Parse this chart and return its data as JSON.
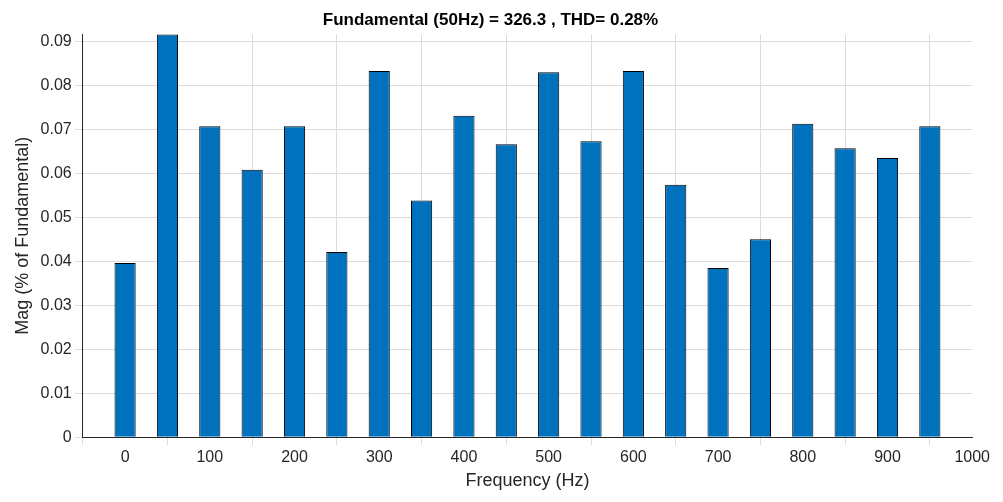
{
  "chart_data": {
    "type": "bar",
    "title": "Fundamental (50Hz) = 326.3 , THD= 0.28%",
    "xlabel": "Frequency (Hz)",
    "ylabel": "Mag (% of Fundamental)",
    "x": [
      0,
      50,
      100,
      150,
      200,
      250,
      300,
      350,
      400,
      450,
      500,
      550,
      600,
      650,
      700,
      750,
      800,
      850,
      900,
      950
    ],
    "values": [
      0.0396,
      0.0916,
      0.0707,
      0.0608,
      0.0707,
      0.0421,
      0.0833,
      0.0538,
      0.0731,
      0.0666,
      0.083,
      0.0673,
      0.0833,
      0.0574,
      0.0385,
      0.045,
      0.0713,
      0.0657,
      0.0635,
      0.0707
    ],
    "color": "#0072bd",
    "xlim": [
      -50,
      1000
    ],
    "xticks": [
      0,
      100,
      200,
      300,
      400,
      500,
      600,
      700,
      800,
      900,
      1000
    ],
    "ylim": [
      0,
      0.0916
    ],
    "yticks": [
      0,
      0.01,
      0.02,
      0.03,
      0.04,
      0.05,
      0.06,
      0.07,
      0.08,
      0.09
    ],
    "grid": true,
    "legend": false
  }
}
